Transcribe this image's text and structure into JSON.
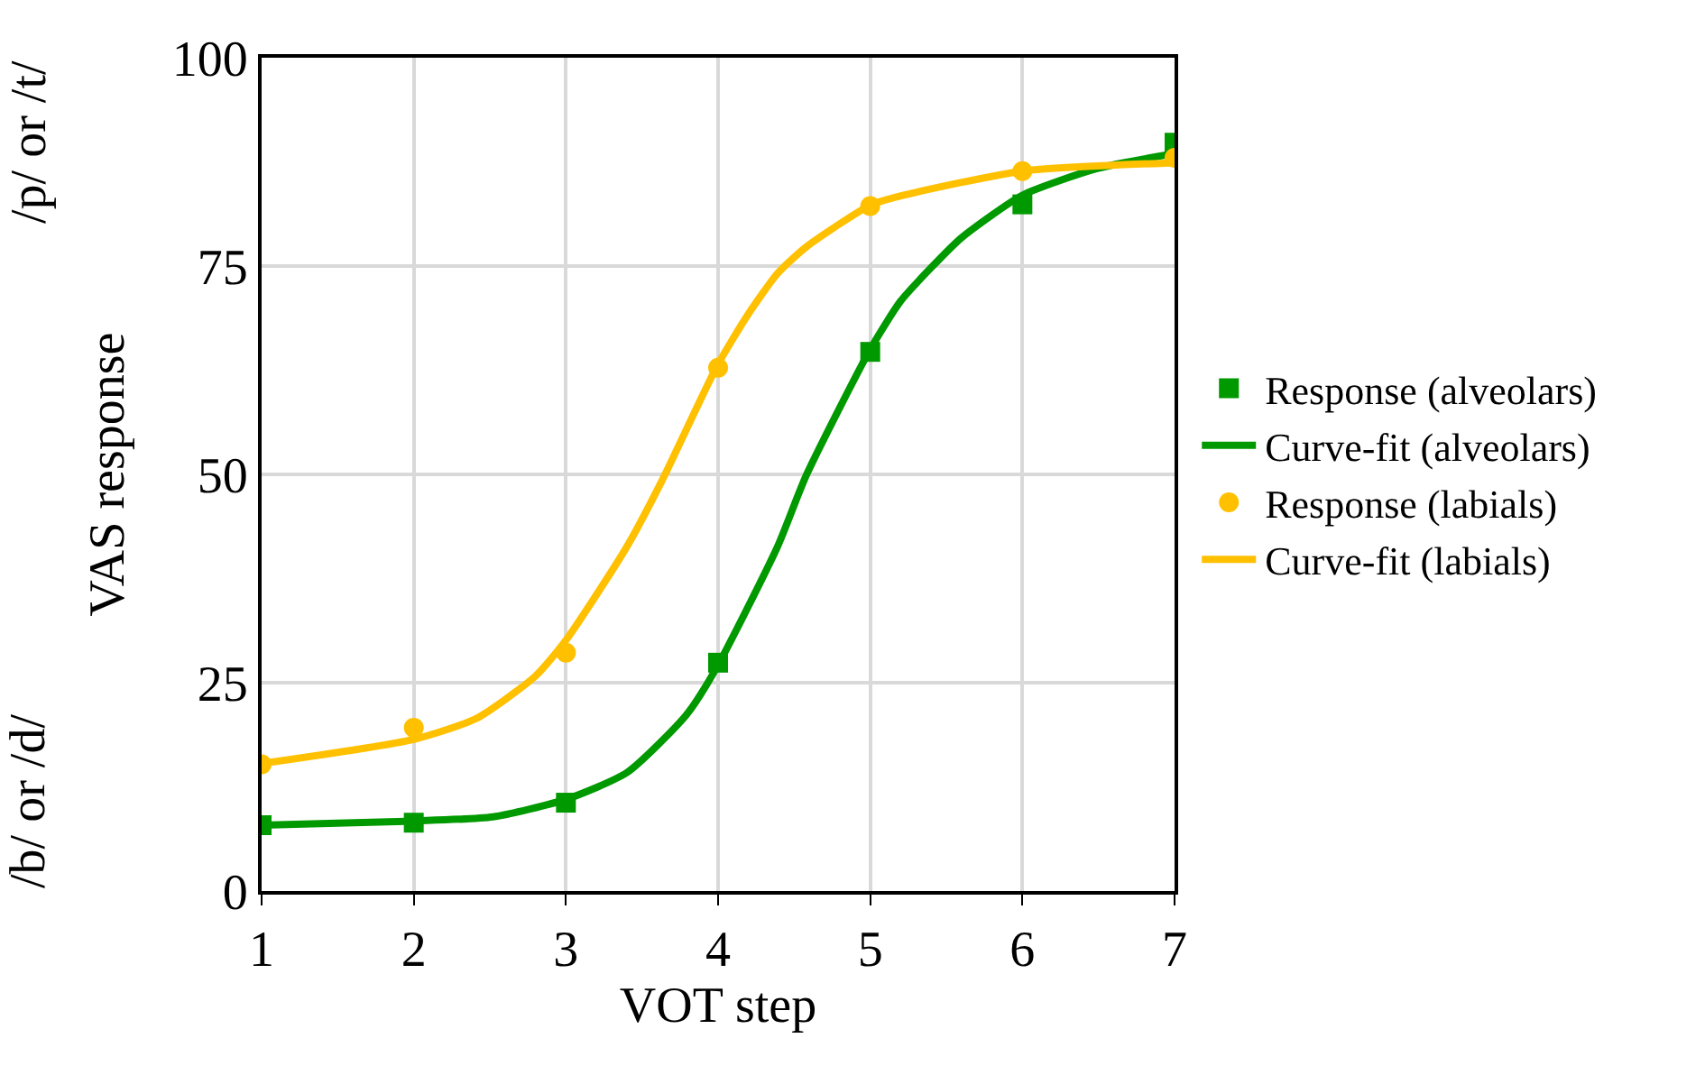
{
  "chart_data": {
    "type": "line",
    "xlabel": "VOT step",
    "ylabel": "VAS response",
    "annotations": [
      "/b/ or /d/",
      "/p/ or /t/"
    ],
    "xlim": [
      1,
      7
    ],
    "xticks": [
      1,
      2,
      3,
      4,
      5,
      6,
      7
    ],
    "ylim": [
      0,
      100
    ],
    "yticks": [
      0,
      25,
      50,
      75,
      100
    ],
    "grid": true,
    "legend": "right",
    "series": [
      {
        "name": "Response (alveolars)",
        "type": "scatter",
        "marker": "square",
        "color": "#009900",
        "x": [
          1,
          2,
          3,
          4,
          5,
          6,
          7
        ],
        "values": [
          7.9,
          8.2,
          10.6,
          27.4,
          64.7,
          82.4,
          89.8
        ]
      },
      {
        "name": "Curve-fit (alveolars)",
        "marker": "none",
        "color": "#009900",
        "x": [
          1,
          2,
          2.52,
          3,
          3.4,
          3.79,
          3.99,
          4.39,
          4.58,
          5,
          5.2,
          5.4,
          5.6,
          6,
          6.49,
          7
        ],
        "values": [
          7.9,
          8.4,
          8.9,
          11.0,
          14.2,
          21.1,
          26.8,
          41.3,
          49.9,
          65,
          70.8,
          74.8,
          78.4,
          83.5,
          86.7,
          88.5
        ]
      },
      {
        "name": "Response (labials)",
        "type": "scatter",
        "marker": "circle",
        "color": "#ffc000",
        "x": [
          1,
          2,
          3,
          4,
          5,
          6,
          7
        ],
        "values": [
          15.2,
          19.6,
          28.6,
          62.8,
          82.2,
          86.4,
          88.0
        ]
      },
      {
        "name": "Curve-fit (labials)",
        "marker": "none",
        "color": "#ffc000",
        "x": [
          1,
          2,
          2.41,
          2.8,
          3,
          3.4,
          3.63,
          3.99,
          4.19,
          4.39,
          4.58,
          5,
          5.22,
          6,
          7
        ],
        "values": [
          15.3,
          18.2,
          20.7,
          25.8,
          30.1,
          41.3,
          49.2,
          62.9,
          69.0,
          74.1,
          77.3,
          82.3,
          83.5,
          86.4,
          87.4
        ]
      }
    ]
  }
}
